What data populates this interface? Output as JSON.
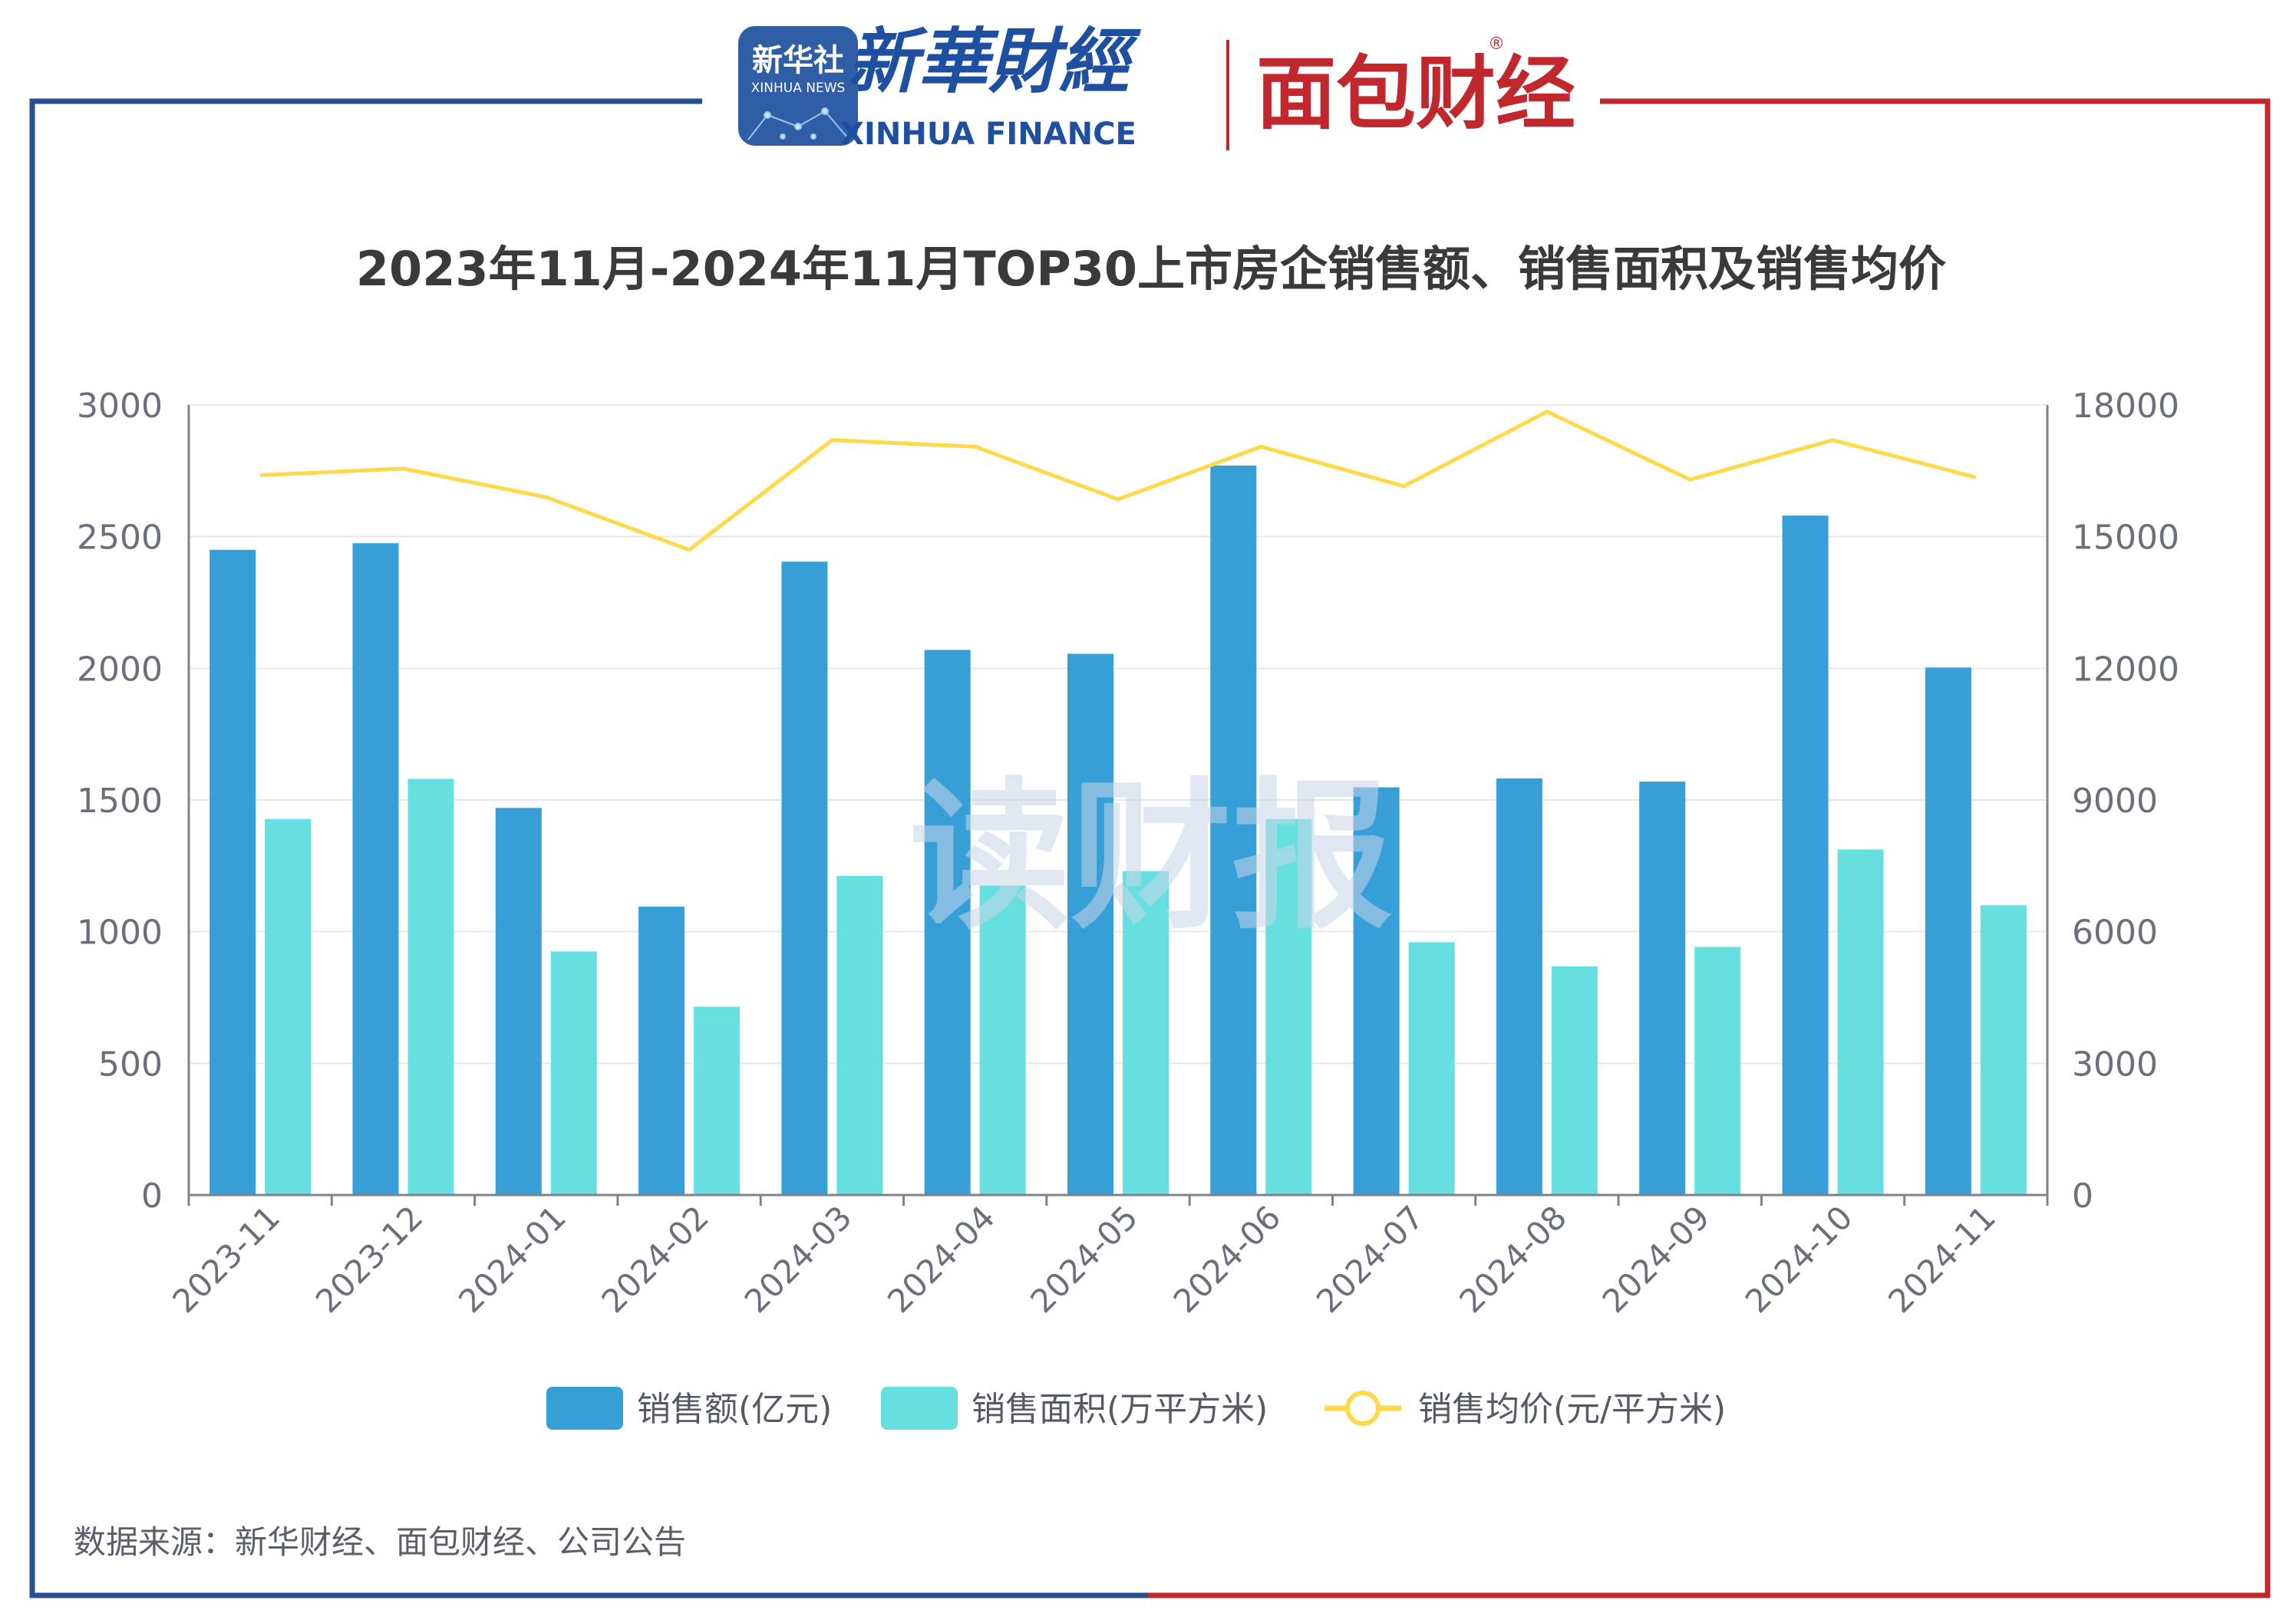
{
  "header": {
    "xinhua_news_logo_top": "新华社",
    "xinhua_news_logo_bottom": "XINHUA NEWS",
    "xinhua_finance_cn": "新華財經",
    "xinhua_finance_en": "XINHUA FINANCE",
    "mianbao_logo": "面包财经",
    "registered_mark": "®"
  },
  "watermark": "读财报",
  "source_note": "数据来源：新华财经、面包财经、公司公告",
  "colors": {
    "frame_left": "#2a4f8f",
    "frame_right": "#c0282e",
    "sales_amount": "#379fd8",
    "sales_area": "#66dfe0",
    "avg_price": "#ffd94a",
    "title": "#3a3a3a",
    "axis_text": "#6b6f7a",
    "watermark": "#c9d3e6"
  },
  "chart_data": {
    "type": "bar",
    "title": "2023年11月-2024年11月TOP30上市房企销售额、销售面积及销售均价",
    "categories": [
      "2023-11",
      "2023-12",
      "2024-01",
      "2024-02",
      "2024-03",
      "2024-04",
      "2024-05",
      "2024-06",
      "2024-07",
      "2024-08",
      "2024-09",
      "2024-10",
      "2024-11"
    ],
    "left_axis": {
      "min": 0,
      "max": 3000,
      "ticks": [
        "0",
        "500",
        "1000",
        "1500",
        "2000",
        "2500",
        "3000"
      ]
    },
    "right_axis": {
      "min": 0,
      "max": 18000,
      "ticks": [
        "0",
        "3000",
        "6000",
        "9000",
        "12000",
        "15000",
        "18000"
      ]
    },
    "series": [
      {
        "name": "销售额(亿元)",
        "type": "bar",
        "axis": "left",
        "values": [
          2450,
          2475,
          1470,
          1095,
          2405,
          2070,
          2055,
          2770,
          1548,
          1582,
          1570,
          2580,
          2003
        ]
      },
      {
        "name": "销售面积(万平方米)",
        "type": "bar",
        "axis": "left",
        "values": [
          1428,
          1580,
          925,
          715,
          1212,
          1175,
          1230,
          1428,
          960,
          868,
          942,
          1312,
          1100
        ]
      },
      {
        "name": "销售均价(元/平方米)",
        "type": "line",
        "axis": "right",
        "values": [
          16400,
          16550,
          15900,
          14700,
          17200,
          17050,
          15850,
          17050,
          16150,
          17850,
          16300,
          17200,
          16350
        ]
      }
    ],
    "legend_position": "bottom"
  }
}
